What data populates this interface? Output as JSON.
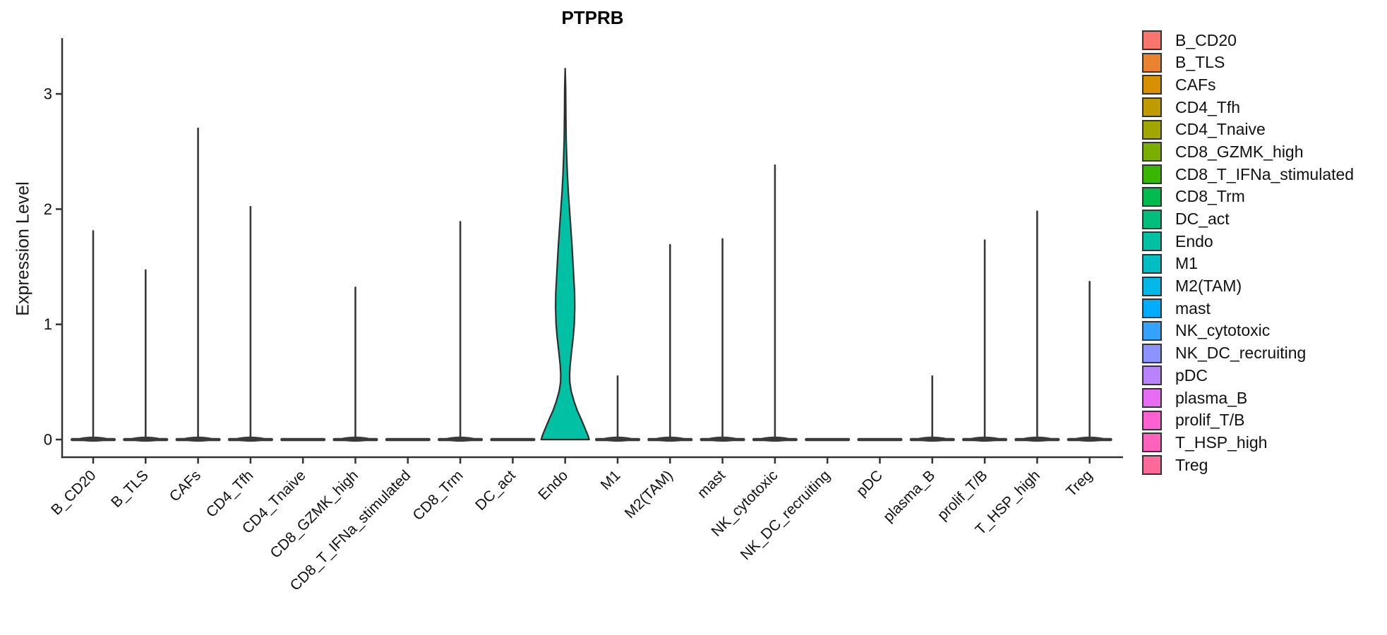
{
  "chart_data": {
    "type": "violin",
    "title": "PTPRB",
    "xlabel": "",
    "ylabel": "Expression Level",
    "yticks": [
      0,
      1,
      2,
      3
    ],
    "ylim": [
      -0.15,
      3.47
    ],
    "grid": false,
    "legend_position": "right",
    "series": [
      {
        "name": "B_CD20",
        "color": "#F8766D",
        "max": 1.81,
        "shape": "spike"
      },
      {
        "name": "B_TLS",
        "color": "#EA8331",
        "max": 1.47,
        "shape": "spike"
      },
      {
        "name": "CAFs",
        "color": "#D89000",
        "max": 2.7,
        "shape": "spike"
      },
      {
        "name": "CD4_Tfh",
        "color": "#C09B00",
        "max": 2.02,
        "shape": "spike"
      },
      {
        "name": "CD4_Tnaive",
        "color": "#A3A500",
        "max": 0,
        "shape": "flat"
      },
      {
        "name": "CD8_GZMK_high",
        "color": "#7CAE00",
        "max": 1.32,
        "shape": "spike"
      },
      {
        "name": "CD8_T_IFNa_stimulated",
        "color": "#39B600",
        "max": 0,
        "shape": "flat"
      },
      {
        "name": "CD8_Trm",
        "color": "#00BB4E",
        "max": 1.89,
        "shape": "spike"
      },
      {
        "name": "DC_act",
        "color": "#00BF7D",
        "max": 0,
        "shape": "flat"
      },
      {
        "name": "Endo",
        "color": "#00C1A3",
        "max": 3.22,
        "shape": "violin"
      },
      {
        "name": "M1",
        "color": "#00BFC4",
        "max": 0.55,
        "shape": "spike"
      },
      {
        "name": "M2(TAM)",
        "color": "#00B8E7",
        "max": 1.69,
        "shape": "spike"
      },
      {
        "name": "mast",
        "color": "#00ACFC",
        "max": 1.74,
        "shape": "spike"
      },
      {
        "name": "NK_cytotoxic",
        "color": "#35A2FF",
        "max": 2.38,
        "shape": "spike"
      },
      {
        "name": "NK_DC_recruiting",
        "color": "#8B93FF",
        "max": 0,
        "shape": "flat"
      },
      {
        "name": "pDC",
        "color": "#B983FF",
        "max": 0,
        "shape": "flat"
      },
      {
        "name": "plasma_B",
        "color": "#E76BF3",
        "max": 0.55,
        "shape": "spike"
      },
      {
        "name": "prolif_T/B",
        "color": "#FD61D1",
        "max": 1.73,
        "shape": "spike"
      },
      {
        "name": "T_HSP_high",
        "color": "#FF62BC",
        "max": 1.98,
        "shape": "spike"
      },
      {
        "name": "Treg",
        "color": "#FF6A9A",
        "max": 1.37,
        "shape": "spike"
      }
    ],
    "endo_violin_profile": [
      [
        3.22,
        0.0
      ],
      [
        3.05,
        0.02
      ],
      [
        2.8,
        0.03
      ],
      [
        2.6,
        0.04
      ],
      [
        2.45,
        0.065
      ],
      [
        2.3,
        0.09
      ],
      [
        2.15,
        0.13
      ],
      [
        2.0,
        0.18
      ],
      [
        1.85,
        0.23
      ],
      [
        1.7,
        0.28
      ],
      [
        1.55,
        0.32
      ],
      [
        1.4,
        0.36
      ],
      [
        1.28,
        0.39
      ],
      [
        1.15,
        0.4
      ],
      [
        1.0,
        0.38
      ],
      [
        0.88,
        0.33
      ],
      [
        0.75,
        0.26
      ],
      [
        0.65,
        0.21
      ],
      [
        0.57,
        0.185
      ],
      [
        0.5,
        0.19
      ],
      [
        0.42,
        0.25
      ],
      [
        0.33,
        0.37
      ],
      [
        0.25,
        0.51
      ],
      [
        0.18,
        0.66
      ],
      [
        0.1,
        0.82
      ],
      [
        0.04,
        0.94
      ],
      [
        0.0,
        1.0
      ]
    ]
  }
}
